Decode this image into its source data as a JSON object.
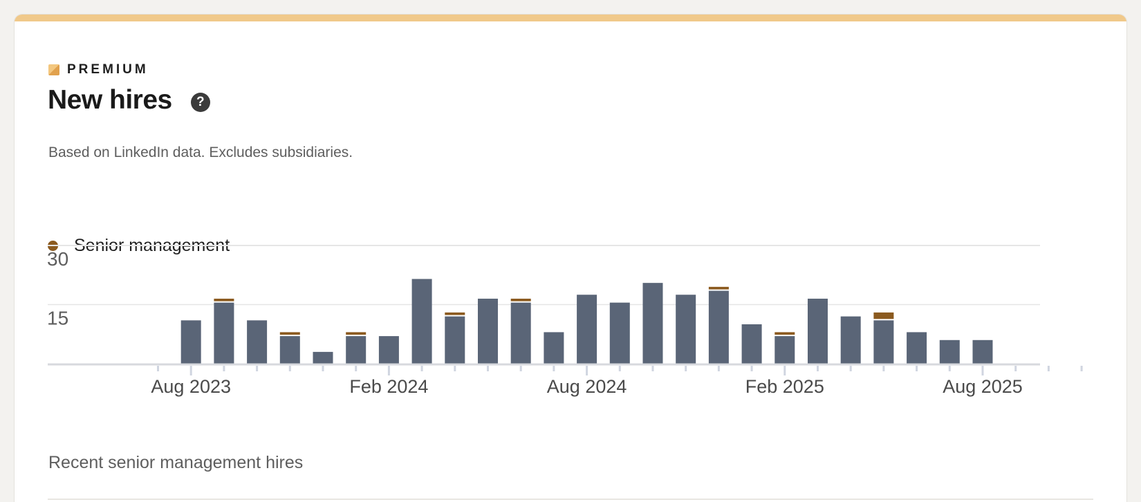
{
  "card": {
    "premium_label": "PREMIUM",
    "title": "New hires",
    "help_icon": "question-circle-icon",
    "subtitle": "Based on LinkedIn data. Excludes subsidiaries.",
    "section_title": "Recent senior management hires"
  },
  "colors": {
    "accent": "#f0c98a",
    "bar_primary": "#5a6577",
    "senior_management": "#8b5a1f",
    "gridline": "#e6e6e6"
  },
  "chart_data": {
    "type": "bar",
    "stacked": true,
    "legend": {
      "position": "top-left"
    },
    "x_tick_labels": [
      "Aug 2023",
      "Feb 2024",
      "Aug 2024",
      "Feb 2025",
      "Aug 2025"
    ],
    "y_ticks": [
      15,
      30
    ],
    "ylim": [
      0,
      30
    ],
    "grid": true,
    "categories": [
      "2023-07",
      "2023-08",
      "2023-09",
      "2023-10",
      "2023-11",
      "2023-12",
      "2024-01",
      "2024-02",
      "2024-03",
      "2024-04",
      "2024-05",
      "2024-06",
      "2024-07",
      "2024-08",
      "2024-09",
      "2024-10",
      "2024-11",
      "2024-12",
      "2025-01",
      "2025-02",
      "2025-03",
      "2025-04",
      "2025-05",
      "2025-06",
      "2025-07",
      "2025-08",
      "2025-09",
      "2025-10",
      "2025-11"
    ],
    "series": [
      {
        "values": [
          0,
          11,
          15.5,
          11,
          7,
          3,
          7,
          7,
          21.5,
          12,
          16.5,
          15.5,
          8,
          17.5,
          15.5,
          20.5,
          17.5,
          18.5,
          10,
          7,
          16.5,
          12,
          11,
          8,
          6,
          6,
          0,
          0,
          0
        ]
      },
      {
        "name": "Senior management",
        "values": [
          0,
          0,
          1,
          0,
          1,
          0,
          1,
          0,
          0,
          1,
          0,
          1,
          0,
          0,
          0,
          0,
          0,
          1,
          0,
          1,
          0,
          0,
          2,
          0,
          0,
          0,
          0,
          0,
          0
        ]
      }
    ]
  }
}
